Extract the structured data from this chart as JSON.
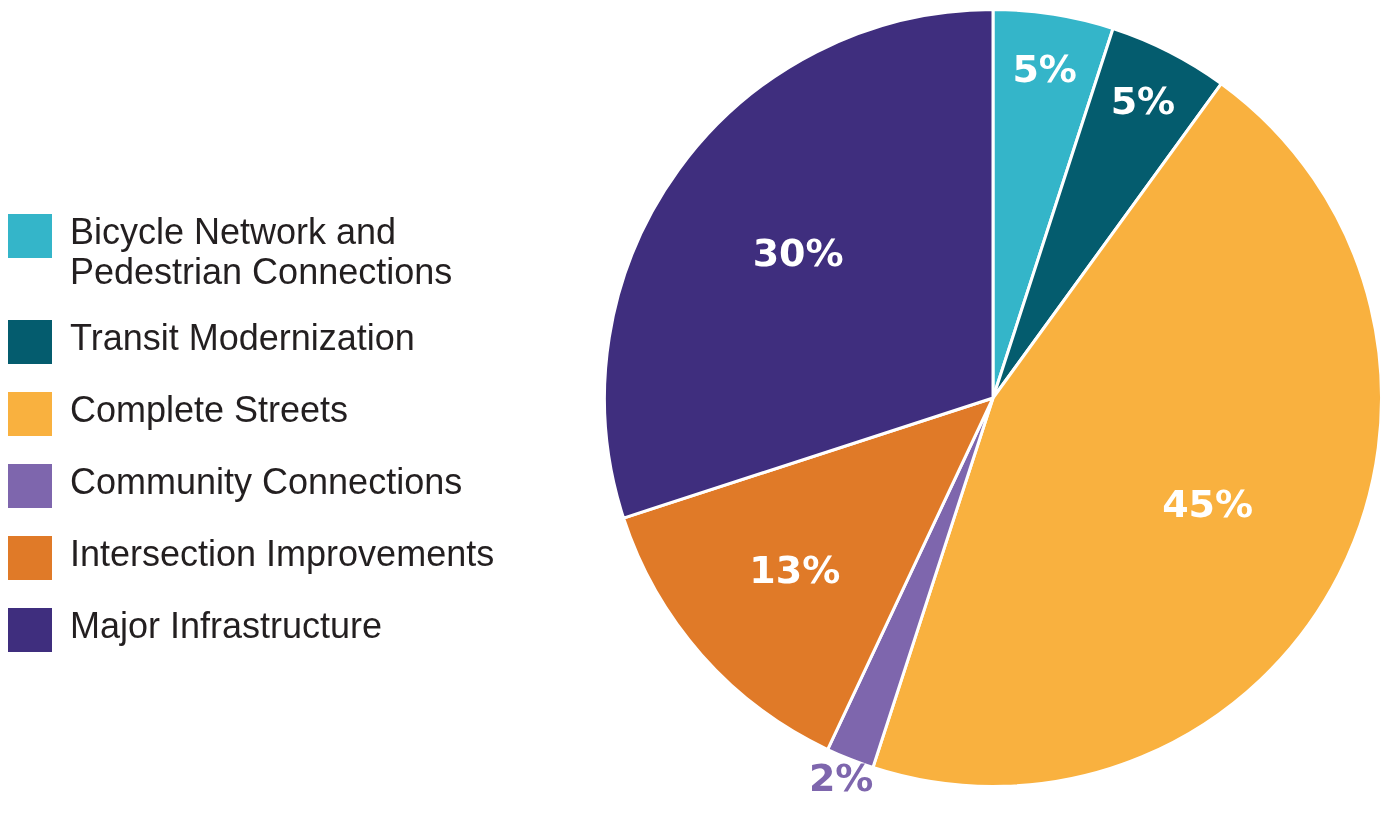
{
  "chart_data": {
    "type": "pie",
    "categories": [
      "Bicycle Network and Pedestrian Connections",
      "Transit Modernization",
      "Complete Streets",
      "Community Connections",
      "Intersection Improvements",
      "Major Infrastructure"
    ],
    "values": [
      5,
      5,
      45,
      2,
      13,
      30
    ],
    "colors": [
      "#34b5c9",
      "#045c6e",
      "#f9b13f",
      "#7e66ad",
      "#e07a28",
      "#3f2e7e"
    ],
    "value_labels": [
      "5%",
      "5%",
      "45%",
      "2%",
      "13%",
      "30%"
    ],
    "legend": "left"
  }
}
